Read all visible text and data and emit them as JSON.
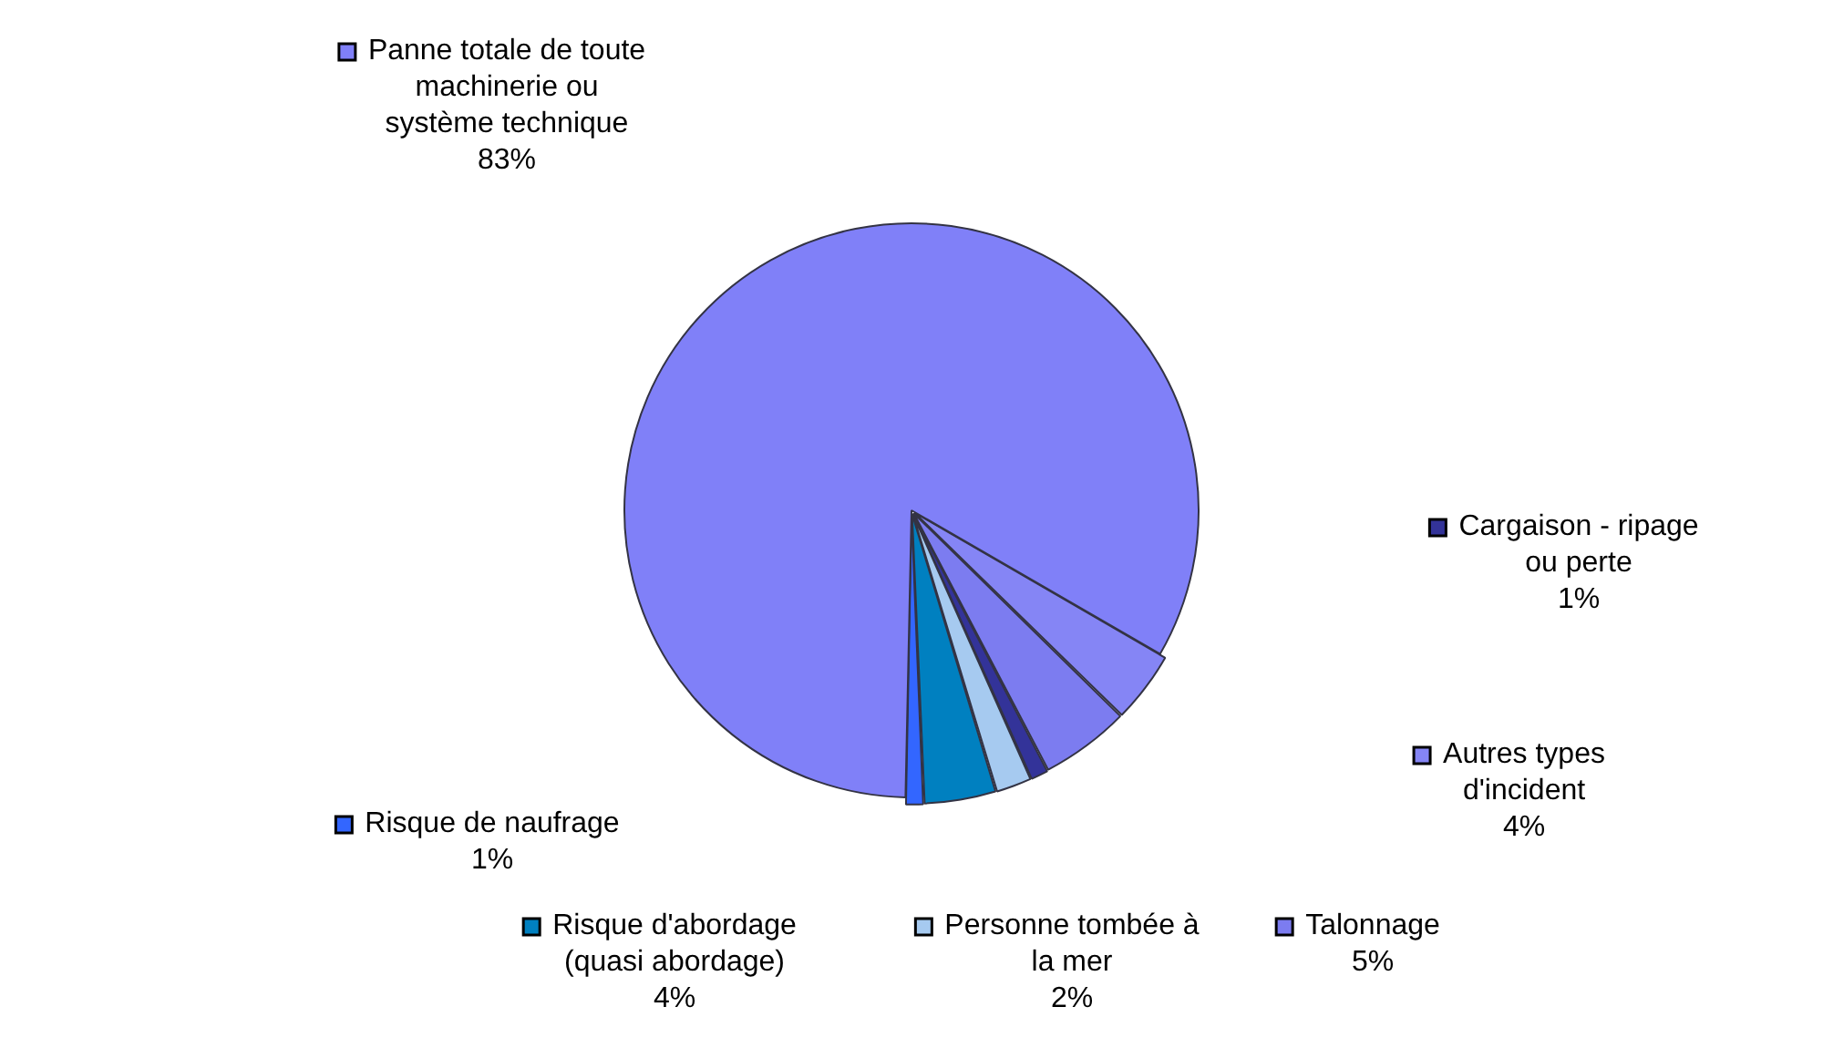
{
  "chart_data": {
    "type": "pie",
    "categories": [
      "Autres types d'incident",
      "Talonnage",
      "Cargaison - ripage ou perte",
      "Personne tombée à la mer",
      "Risque d'abordage (quasi abordage)",
      "Risque de naufrage",
      "Panne totale de toute machinerie ou système technique"
    ],
    "values": [
      4,
      5,
      1,
      2,
      4,
      1,
      83
    ],
    "value_labels": [
      "4%",
      "5%",
      "1%",
      "2%",
      "4%",
      "1%",
      "83%"
    ],
    "colors": [
      "#8585f5",
      "#7c7cf0",
      "#333399",
      "#a6caf0",
      "#0080c0",
      "#3366ff",
      "#8080f8"
    ],
    "legend": "top right"
  }
}
